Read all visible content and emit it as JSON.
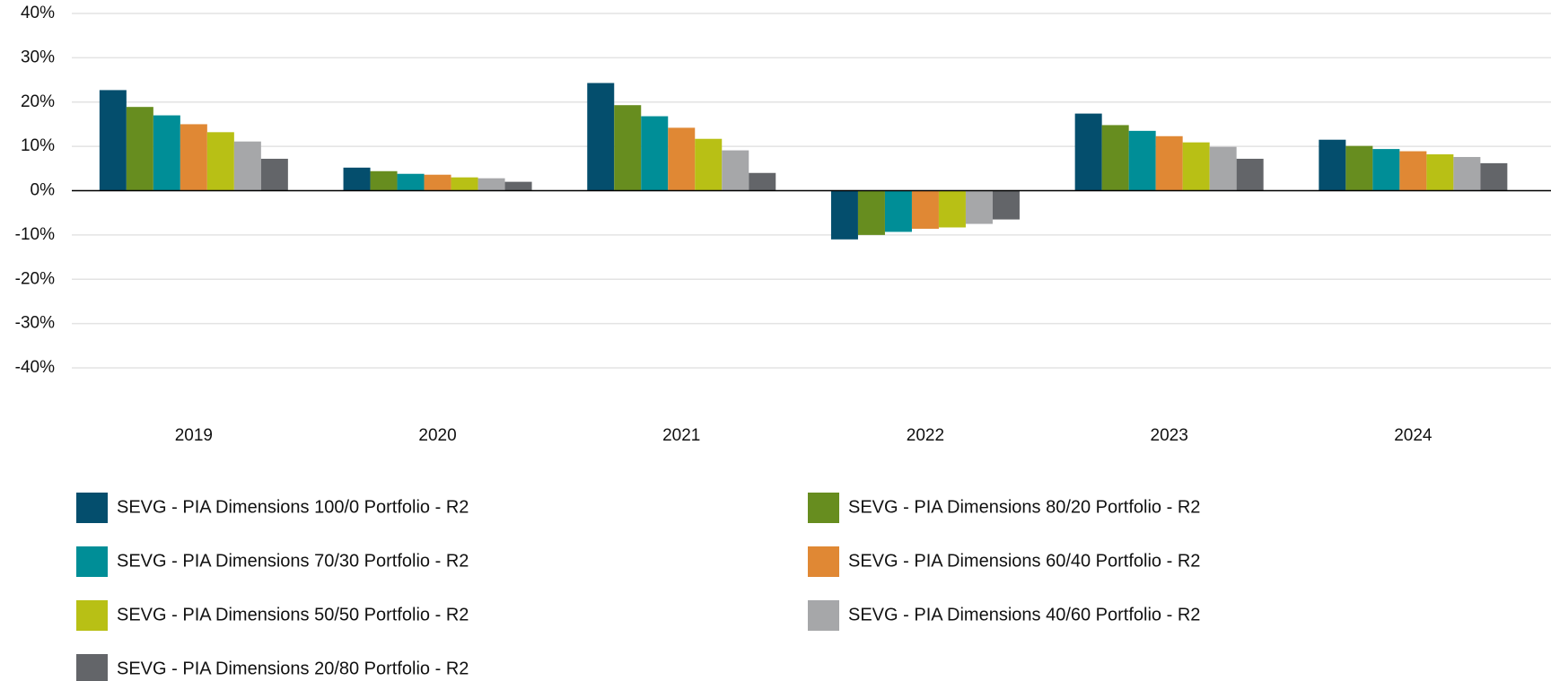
{
  "chart_data": {
    "type": "bar",
    "categories": [
      "2019",
      "2020",
      "2021",
      "2022",
      "2023",
      "2024"
    ],
    "series": [
      {
        "name": "SEVG - PIA Dimensions 100/0 Portfolio - R2",
        "color": "#044e6d",
        "values": [
          22.7,
          5.2,
          24.3,
          -11.0,
          17.4,
          11.5
        ]
      },
      {
        "name": "SEVG - PIA Dimensions 80/20 Portfolio - R2",
        "color": "#678d1f",
        "values": [
          18.9,
          4.4,
          19.3,
          -10.0,
          14.8,
          10.1
        ]
      },
      {
        "name": "SEVG - PIA Dimensions 70/30 Portfolio - R2",
        "color": "#008e97",
        "values": [
          17.0,
          3.8,
          16.8,
          -9.3,
          13.5,
          9.4
        ]
      },
      {
        "name": "SEVG - PIA Dimensions 60/40 Portfolio - R2",
        "color": "#e08834",
        "values": [
          15.0,
          3.6,
          14.2,
          -8.6,
          12.3,
          8.9
        ]
      },
      {
        "name": "SEVG - PIA Dimensions 50/50 Portfolio - R2",
        "color": "#b8c015",
        "values": [
          13.2,
          3.0,
          11.7,
          -8.3,
          10.9,
          8.2
        ]
      },
      {
        "name": "SEVG - PIA Dimensions 40/60 Portfolio - R2",
        "color": "#a6a7a9",
        "values": [
          11.1,
          2.8,
          9.1,
          -7.5,
          9.9,
          7.6
        ]
      },
      {
        "name": "SEVG - PIA Dimensions 20/80 Portfolio - R2",
        "color": "#636569",
        "values": [
          7.2,
          2.0,
          4.0,
          -6.5,
          7.2,
          6.2
        ]
      }
    ],
    "ylim": [
      -40,
      40
    ],
    "yticks": [
      {
        "value": -40,
        "label": "-40%"
      },
      {
        "value": -30,
        "label": "-30%"
      },
      {
        "value": -20,
        "label": "-20%"
      },
      {
        "value": -10,
        "label": "-10%"
      },
      {
        "value": 0,
        "label": "0%"
      },
      {
        "value": 10,
        "label": "10%"
      },
      {
        "value": 20,
        "label": "20%"
      },
      {
        "value": 30,
        "label": "30%"
      },
      {
        "value": 40,
        "label": "40%"
      }
    ],
    "grid": true
  }
}
